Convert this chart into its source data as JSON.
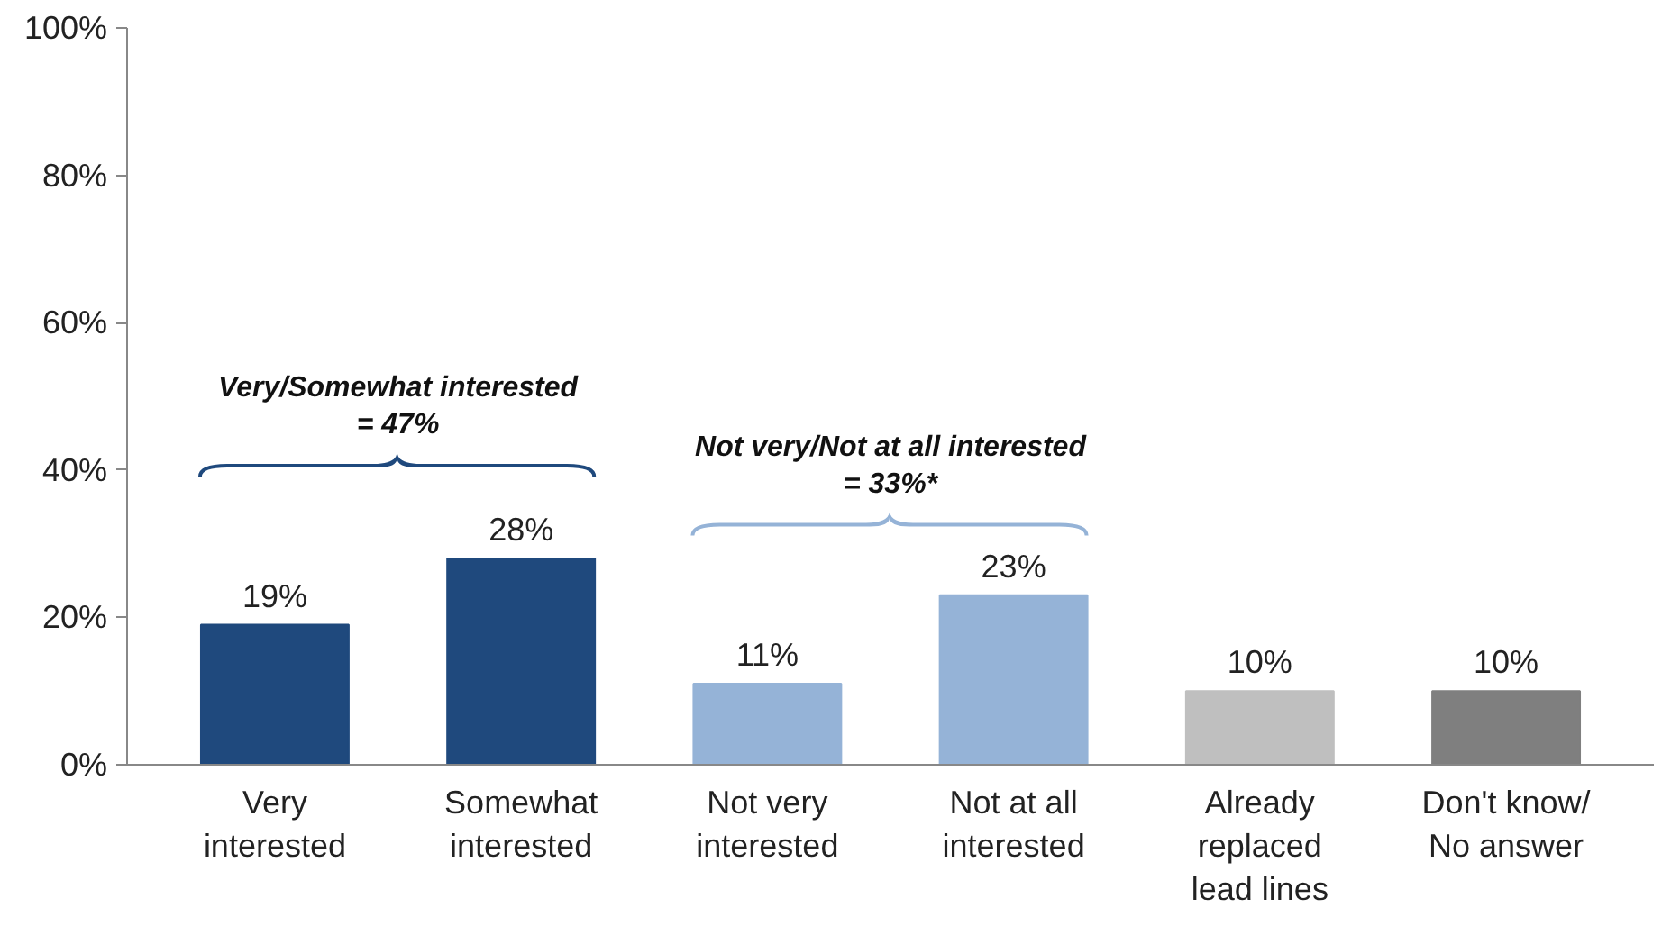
{
  "chart_data": {
    "type": "bar",
    "categories": [
      "Very\ninterested",
      "Somewhat\ninterested",
      "Not very\ninterested",
      "Not at all\ninterested",
      "Already\nreplaced\nlead lines",
      "Don't know/\nNo answer"
    ],
    "values": [
      19,
      28,
      11,
      23,
      10,
      10
    ],
    "colors": [
      "#1f497d",
      "#1f497d",
      "#95b3d7",
      "#95b3d7",
      "#bfbfbf",
      "#7f7f7f"
    ],
    "ylim": [
      0,
      100
    ],
    "yticks": [
      {
        "value": 0,
        "label": "0%"
      },
      {
        "value": 20,
        "label": "20%"
      },
      {
        "value": 40,
        "label": "40%"
      },
      {
        "value": 60,
        "label": "60%"
      },
      {
        "value": 80,
        "label": "80%"
      },
      {
        "value": 100,
        "label": "100%"
      }
    ],
    "value_labels": [
      "19%",
      "28%",
      "11%",
      "23%",
      "10%",
      "10%"
    ],
    "annotations": [
      "Very/Somewhat interested\n= 47%",
      "Not very/Not at all interested\n= 33%*"
    ],
    "grid": false
  }
}
